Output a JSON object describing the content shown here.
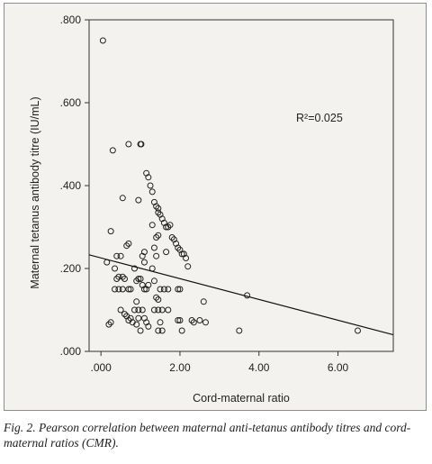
{
  "chart_data": {
    "type": "scatter",
    "xlabel": "Cord-maternal ratio",
    "ylabel": "Maternal tetanus antibody titre (IU/mL)",
    "xlim": [
      -0.3,
      7.4
    ],
    "ylim": [
      0,
      0.8
    ],
    "x_ticks": [
      0,
      2,
      4,
      6
    ],
    "x_tick_labels": [
      ".000",
      "2.00",
      "4.00",
      "6.00"
    ],
    "y_ticks": [
      0,
      0.2,
      0.4,
      0.6,
      0.8
    ],
    "y_tick_labels": [
      ".000",
      ".200",
      ".400",
      ".600",
      ".800"
    ],
    "grid": false,
    "annotation": "R²=0.025",
    "fit_line": {
      "x": [
        -0.3,
        7.4
      ],
      "y": [
        0.233,
        0.04
      ]
    },
    "points": [
      [
        0.05,
        0.75
      ],
      [
        0.2,
        0.065
      ],
      [
        0.3,
        0.485
      ],
      [
        0.7,
        0.5
      ],
      [
        1.0,
        0.5
      ],
      [
        1.02,
        0.5
      ],
      [
        0.25,
        0.29
      ],
      [
        0.55,
        0.37
      ],
      [
        0.95,
        0.365
      ],
      [
        0.15,
        0.215
      ],
      [
        0.4,
        0.23
      ],
      [
        0.5,
        0.23
      ],
      [
        0.45,
        0.18
      ],
      [
        0.55,
        0.18
      ],
      [
        0.65,
        0.255
      ],
      [
        0.7,
        0.26
      ],
      [
        0.35,
        0.2
      ],
      [
        0.4,
        0.175
      ],
      [
        0.6,
        0.175
      ],
      [
        0.35,
        0.15
      ],
      [
        0.45,
        0.15
      ],
      [
        0.55,
        0.15
      ],
      [
        0.7,
        0.15
      ],
      [
        0.75,
        0.15
      ],
      [
        0.5,
        0.1
      ],
      [
        0.6,
        0.09
      ],
      [
        0.65,
        0.085
      ],
      [
        0.7,
        0.075
      ],
      [
        0.75,
        0.08
      ],
      [
        0.8,
        0.07
      ],
      [
        0.9,
        0.065
      ],
      [
        0.25,
        0.07
      ],
      [
        0.85,
        0.2
      ],
      [
        0.9,
        0.17
      ],
      [
        0.95,
        0.175
      ],
      [
        1.0,
        0.175
      ],
      [
        0.85,
        0.1
      ],
      [
        0.95,
        0.1
      ],
      [
        0.9,
        0.12
      ],
      [
        0.95,
        0.08
      ],
      [
        1.0,
        0.05
      ],
      [
        1.05,
        0.23
      ],
      [
        1.1,
        0.215
      ],
      [
        1.1,
        0.24
      ],
      [
        1.05,
        0.16
      ],
      [
        1.1,
        0.15
      ],
      [
        1.15,
        0.15
      ],
      [
        1.2,
        0.16
      ],
      [
        1.05,
        0.1
      ],
      [
        1.1,
        0.08
      ],
      [
        1.15,
        0.07
      ],
      [
        1.2,
        0.06
      ],
      [
        1.15,
        0.43
      ],
      [
        1.2,
        0.42
      ],
      [
        1.25,
        0.4
      ],
      [
        1.3,
        0.385
      ],
      [
        1.35,
        0.36
      ],
      [
        1.4,
        0.35
      ],
      [
        1.45,
        0.345
      ],
      [
        1.45,
        0.335
      ],
      [
        1.5,
        0.33
      ],
      [
        1.55,
        0.32
      ],
      [
        1.6,
        0.31
      ],
      [
        1.65,
        0.3
      ],
      [
        1.7,
        0.3
      ],
      [
        1.75,
        0.305
      ],
      [
        1.8,
        0.275
      ],
      [
        1.85,
        0.27
      ],
      [
        1.9,
        0.26
      ],
      [
        1.95,
        0.25
      ],
      [
        2.0,
        0.245
      ],
      [
        2.05,
        0.235
      ],
      [
        2.1,
        0.235
      ],
      [
        2.15,
        0.225
      ],
      [
        2.2,
        0.205
      ],
      [
        1.3,
        0.305
      ],
      [
        1.4,
        0.275
      ],
      [
        1.45,
        0.28
      ],
      [
        1.35,
        0.25
      ],
      [
        1.4,
        0.23
      ],
      [
        1.65,
        0.24
      ],
      [
        1.3,
        0.2
      ],
      [
        1.35,
        0.17
      ],
      [
        1.4,
        0.13
      ],
      [
        1.45,
        0.125
      ],
      [
        1.35,
        0.1
      ],
      [
        1.45,
        0.1
      ],
      [
        1.5,
        0.15
      ],
      [
        1.6,
        0.15
      ],
      [
        1.7,
        0.15
      ],
      [
        1.55,
        0.1
      ],
      [
        1.7,
        0.1
      ],
      [
        1.5,
        0.07
      ],
      [
        1.45,
        0.05
      ],
      [
        1.55,
        0.05
      ],
      [
        1.95,
        0.15
      ],
      [
        2.0,
        0.15
      ],
      [
        1.95,
        0.075
      ],
      [
        2.0,
        0.075
      ],
      [
        2.05,
        0.05
      ],
      [
        2.3,
        0.075
      ],
      [
        2.35,
        0.07
      ],
      [
        2.5,
        0.075
      ],
      [
        2.6,
        0.12
      ],
      [
        2.65,
        0.07
      ],
      [
        3.5,
        0.05
      ],
      [
        3.7,
        0.135
      ],
      [
        6.5,
        0.05
      ]
    ]
  },
  "caption": "Fig. 2. Pearson correlation between maternal anti-tetanus antibody titres and cord-maternal ratios (CMR)."
}
